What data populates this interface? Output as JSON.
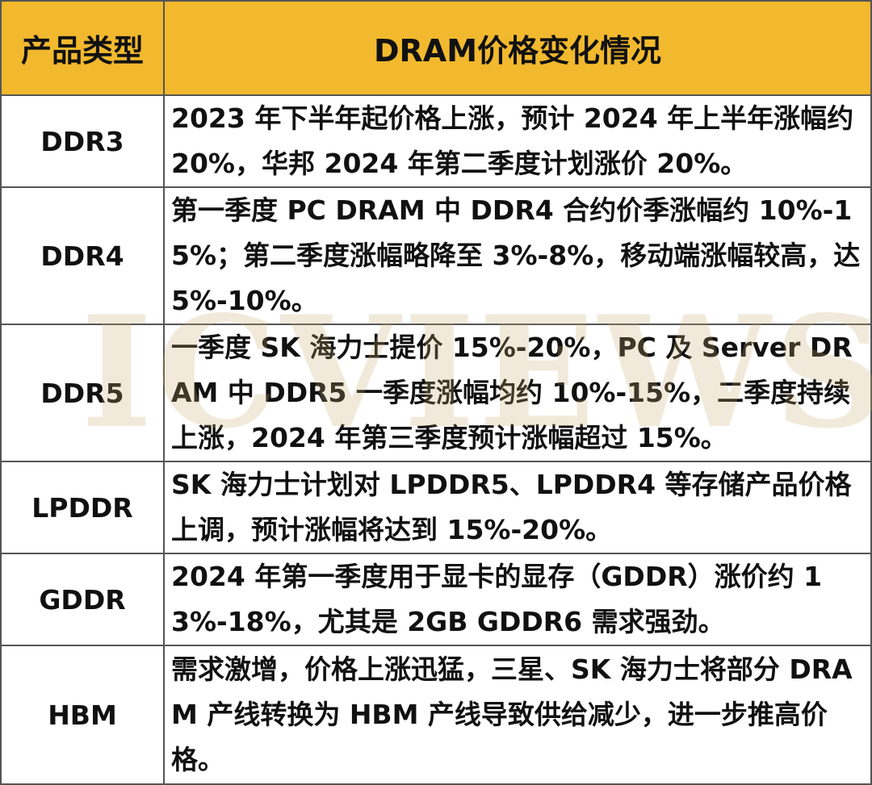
{
  "table": {
    "header": [
      "产品类型",
      "DRAM价格变化情况"
    ],
    "rows": [
      [
        "DDR3",
        "2023 年下半年起价格上涨，预计 2024 年上半年涨幅约 20%，华邦 2024 年第二季度计划涨价 20%。"
      ],
      [
        "DDR4",
        "第一季度 PC DRAM 中 DDR4 合约价季涨幅约 10%-15%；第二季度涨幅略降至 3%-8%，移动端涨幅较高，达 5%-10%。"
      ],
      [
        "DDR5",
        "一季度 SK 海力士提价 15%-20%，PC 及 Server DRAM 中 DDR5 一季度涨幅均约 10%-15%，二季度持续上涨，2024 年第三季度预计涨幅超过 15%。"
      ],
      [
        "LPDDR",
        "SK 海力士计划对 LPDDR5、LPDDR4 等存储产品价格上调，预计涨幅将达到 15%-20%。"
      ],
      [
        "GDDR",
        "2024 年第一季度用于显卡的显存（GDDR）涨价约 13%-18%，尤其是 2GB GDDR6 需求强劲。"
      ],
      [
        "HBM",
        "需求激增，价格上涨迅猛，三星、SK 海力士将部分 DRAM 产线转换为 HBM 产线导致供给减少，进一步推高价格。"
      ]
    ]
  },
  "watermark": "ICVIEWS"
}
